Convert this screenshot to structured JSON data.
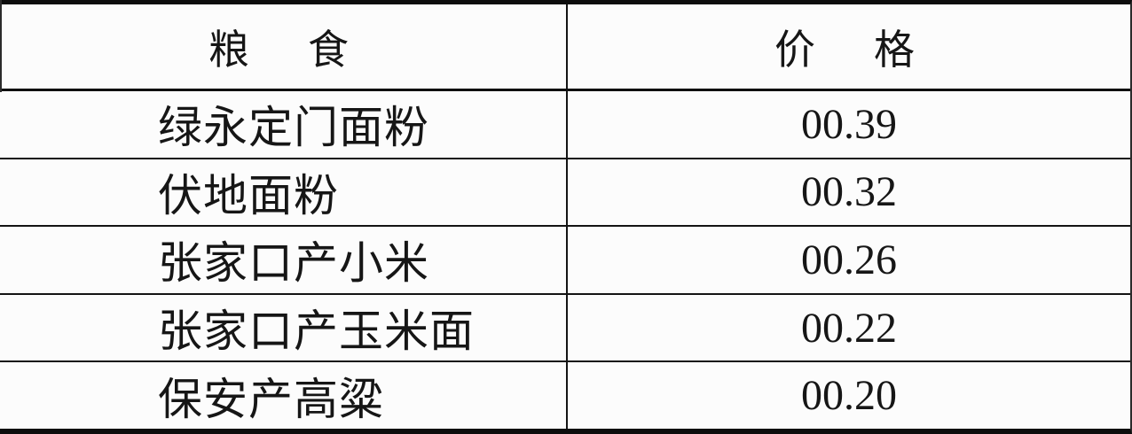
{
  "table": {
    "header": {
      "grain": "粮　食",
      "price": "价　格"
    },
    "rows": [
      {
        "grain": "绿永定门面粉",
        "price": "00.39"
      },
      {
        "grain": "伏地面粉",
        "price": "00.32"
      },
      {
        "grain": "张家口产小米",
        "price": "00.26"
      },
      {
        "grain": "张家口产玉米面",
        "price": "00.22"
      },
      {
        "grain": "保安产高粱",
        "price": "00.20"
      }
    ]
  },
  "colors": {
    "rule": "#0d0d0d",
    "thin_rule": "#141414",
    "background": "#fcfcfc",
    "text": "#161616"
  }
}
